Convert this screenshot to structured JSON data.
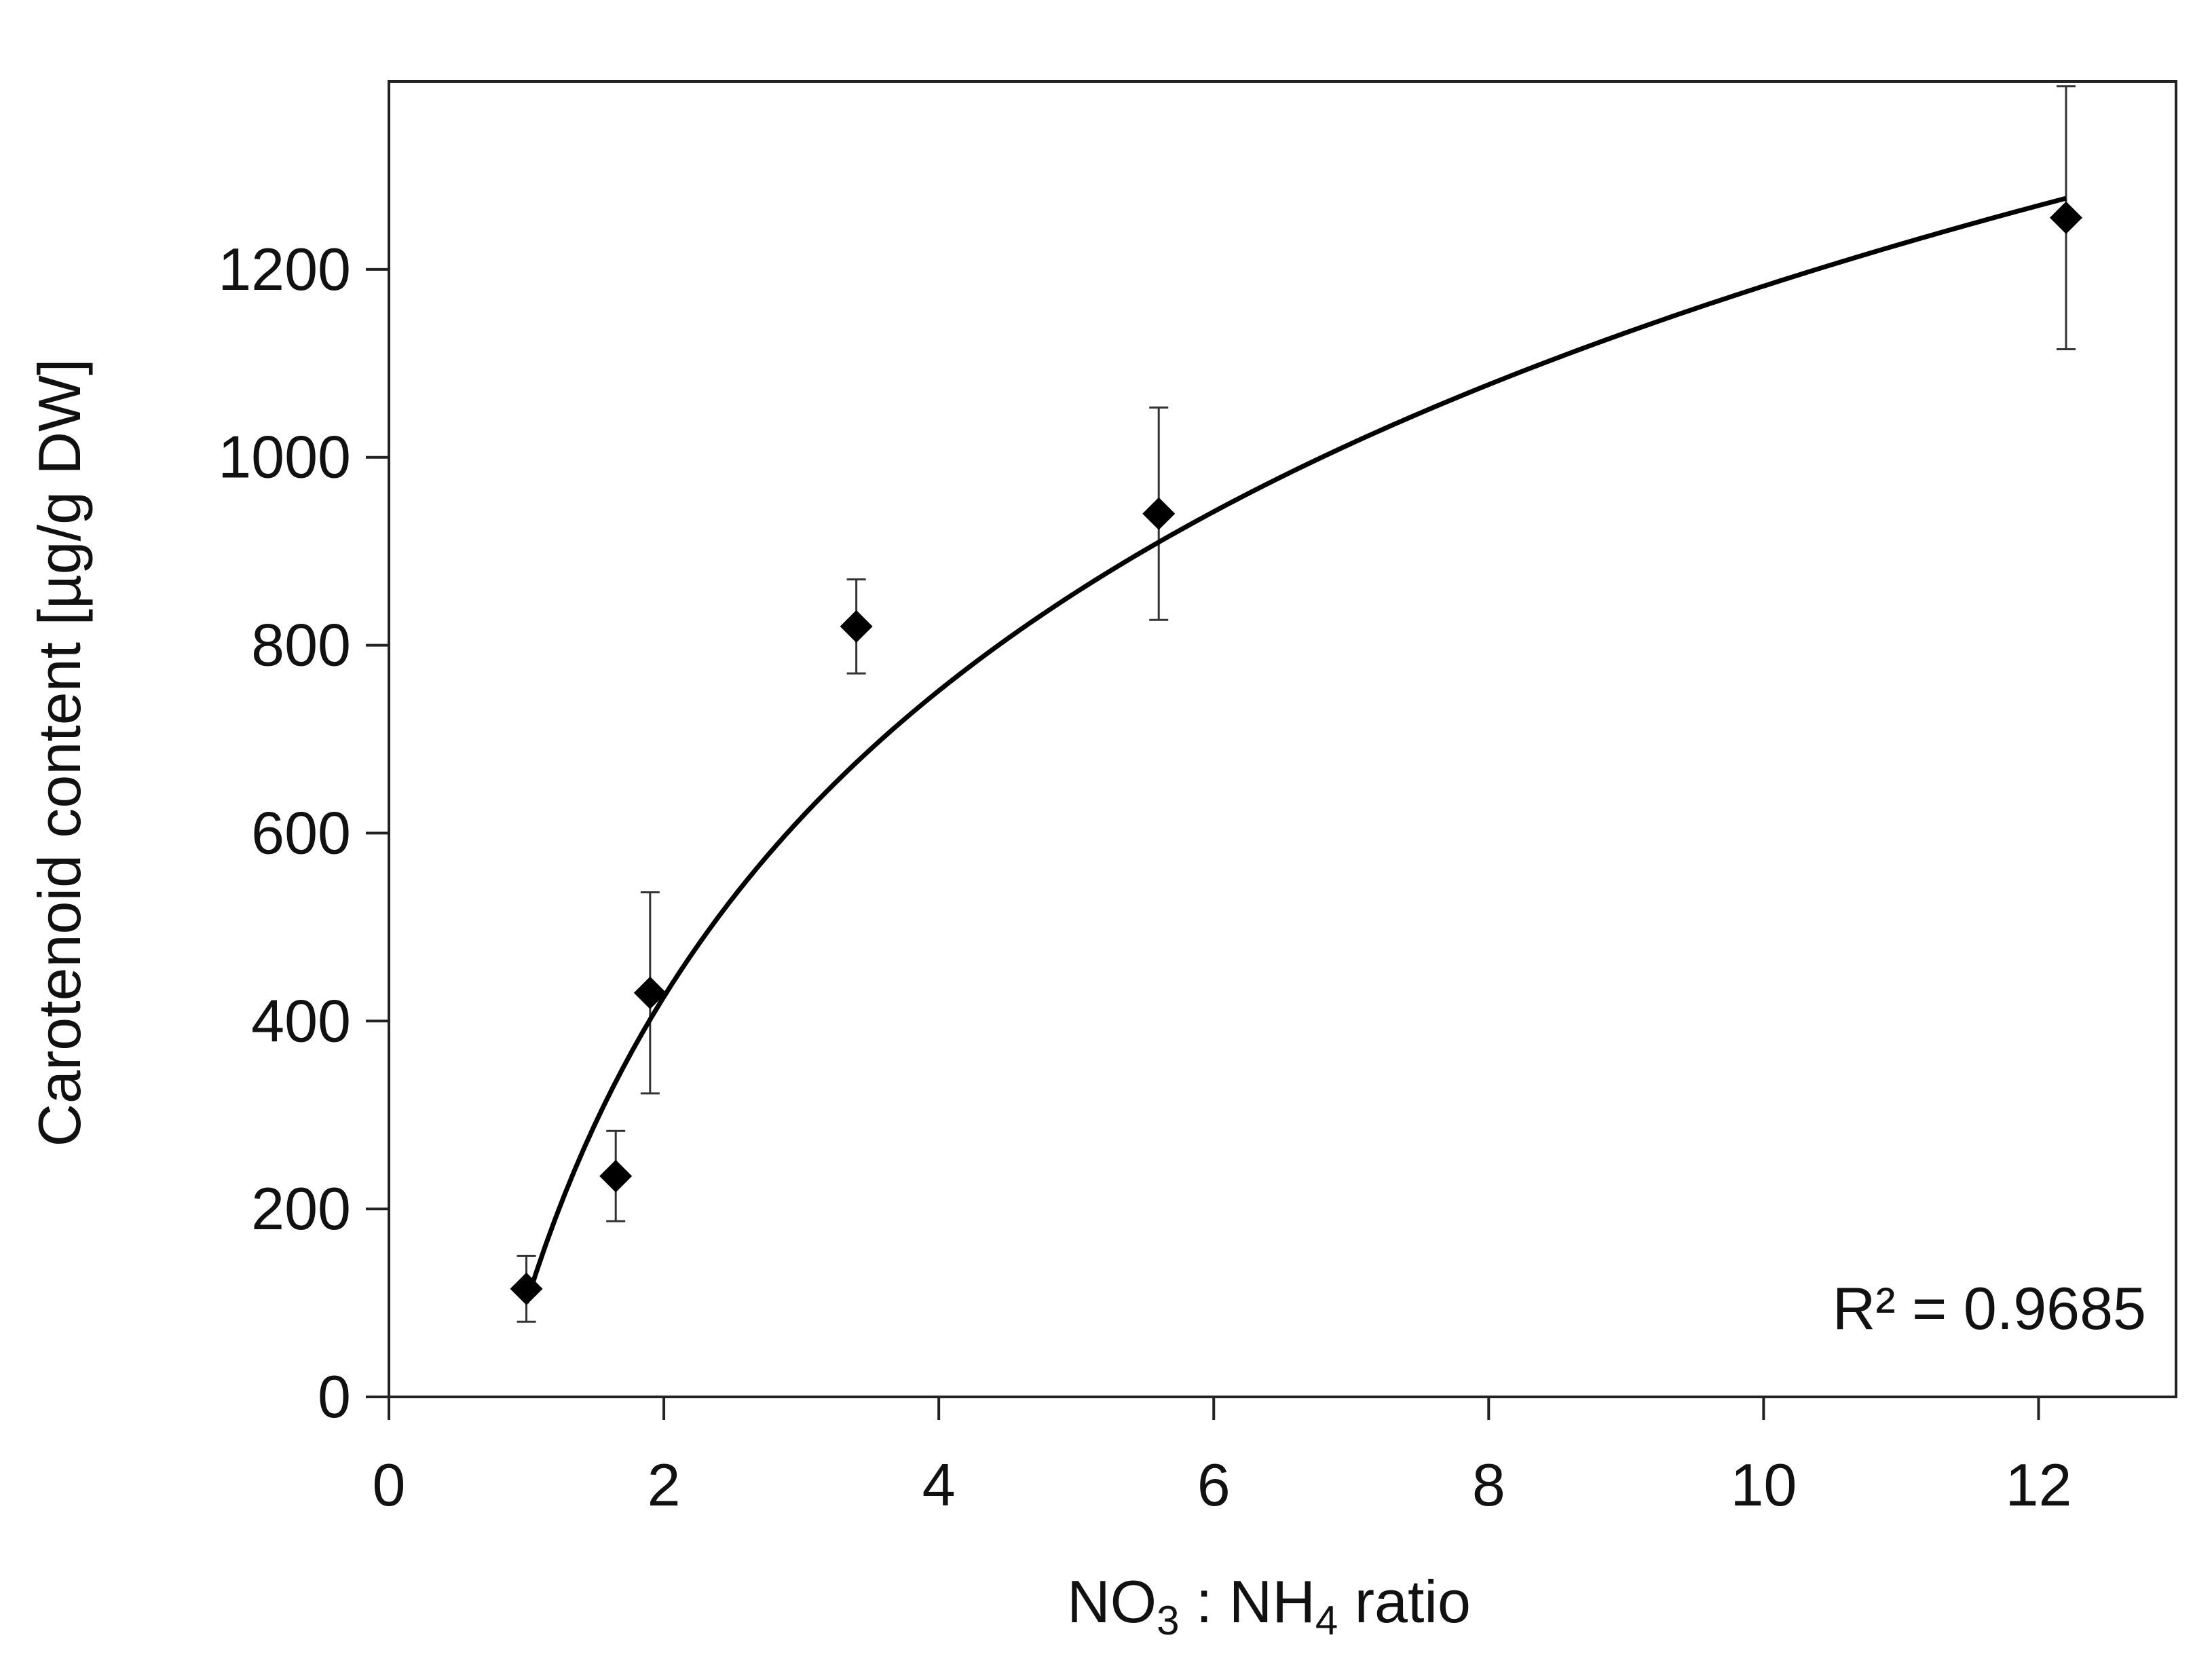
{
  "chart_data": {
    "type": "scatter",
    "title": "",
    "xlabel": {
      "parts": [
        {
          "text": "NO",
          "sub": false
        },
        {
          "text": "3",
          "sub": true
        },
        {
          "text": " : NH",
          "sub": false
        },
        {
          "text": "4",
          "sub": true
        },
        {
          "text": " ratio",
          "sub": false
        }
      ]
    },
    "ylabel": "Carotenoid content [µg/g DW]",
    "xlim": [
      0,
      13
    ],
    "ylim": [
      0,
      1400
    ],
    "x_ticks": [
      0,
      2,
      4,
      6,
      8,
      10,
      12
    ],
    "y_ticks": [
      0,
      200,
      400,
      600,
      800,
      1000,
      1200
    ],
    "x_tick_labels": [
      "0",
      "2",
      "4",
      "6",
      "8",
      "10",
      "12"
    ],
    "y_tick_labels": [
      "0",
      "200",
      "400",
      "600",
      "800",
      "1000",
      "1200"
    ],
    "grid": false,
    "marker": "diamond",
    "color": "#000000",
    "series": [
      {
        "points": [
          {
            "x": 1.0,
            "y": 115,
            "err": 35
          },
          {
            "x": 1.65,
            "y": 235,
            "err": 48
          },
          {
            "x": 1.9,
            "y": 430,
            "err": 107
          },
          {
            "x": 3.4,
            "y": 820,
            "err": 50
          },
          {
            "x": 5.6,
            "y": 940,
            "err": 113
          },
          {
            "x": 12.2,
            "y": 1255,
            "err": 140
          }
        ]
      }
    ],
    "trendline": {
      "type": "logarithmic",
      "a": 470,
      "b": 100,
      "x_range": [
        1.0,
        12.2
      ]
    },
    "annotation": {
      "label": "R² = 0.9685",
      "placement": "bottom-right"
    }
  }
}
